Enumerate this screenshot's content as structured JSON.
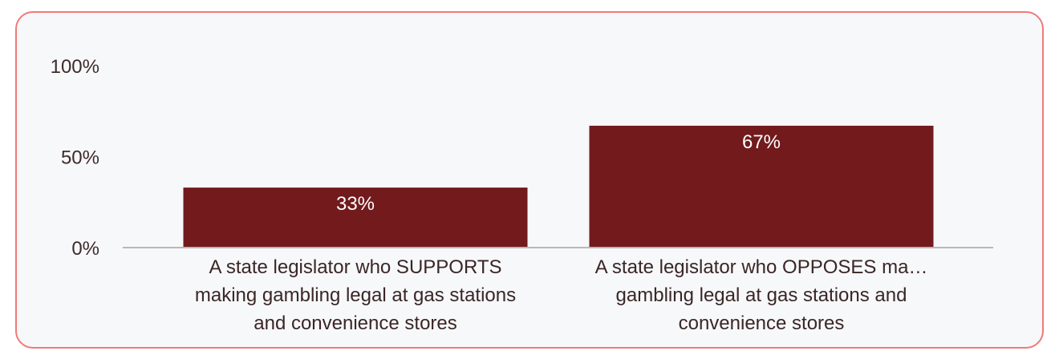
{
  "chart_data": {
    "type": "bar",
    "categories": [
      "A state legislator who SUPPORTS making gambling legal at gas stations and convenience stores",
      "A state legislator who OPPOSES ma… gambling legal at gas stations and convenience stores"
    ],
    "category_lines": [
      [
        "A state legislator who SUPPORTS",
        "making gambling legal at gas stations",
        "and convenience stores"
      ],
      [
        "A state legislator who OPPOSES ma…",
        "gambling legal at gas stations and",
        "convenience stores"
      ]
    ],
    "values": [
      33,
      67
    ],
    "data_labels": [
      "33%",
      "67%"
    ],
    "yticks": [
      0,
      50,
      100
    ],
    "ytick_labels": [
      "0%",
      "50%",
      "100%"
    ],
    "ylim": [
      0,
      100
    ],
    "title": "",
    "xlabel": "",
    "ylabel": "",
    "grid": false,
    "bar_color": "#721a1c",
    "axis_color": "#b8b8b8"
  }
}
